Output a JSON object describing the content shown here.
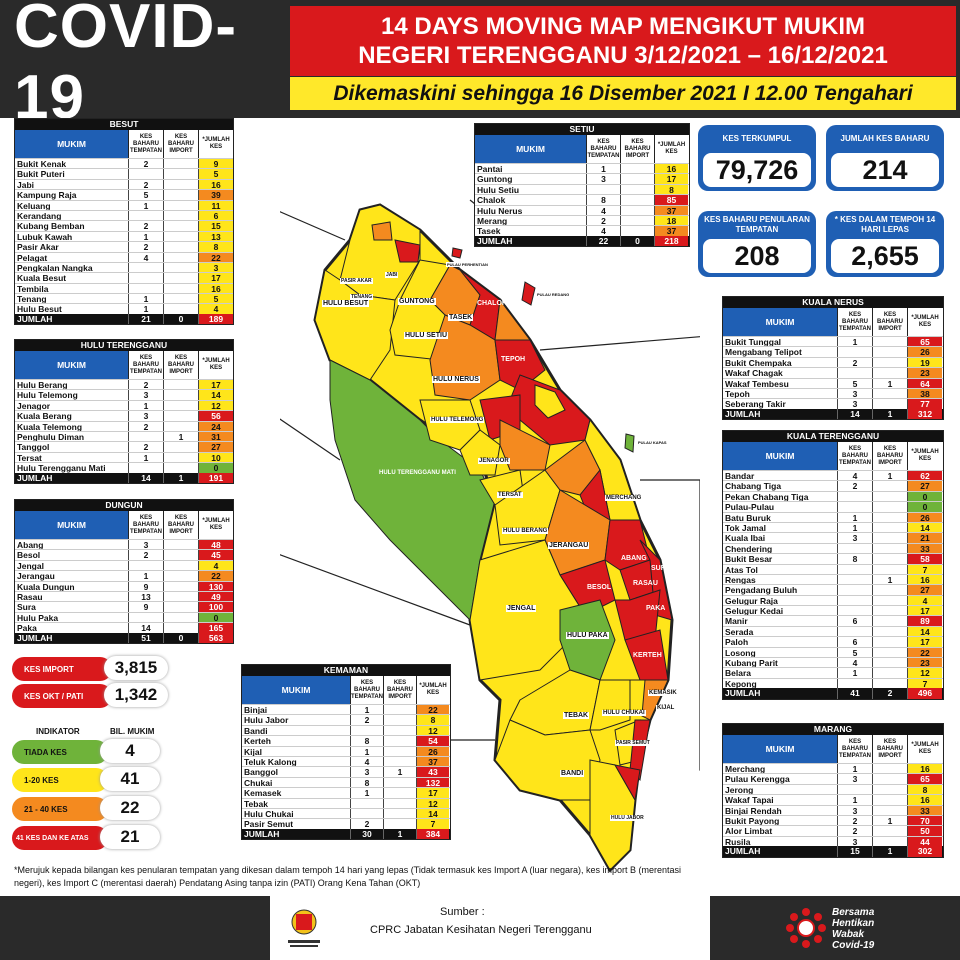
{
  "header": {
    "logo": "COVID-19",
    "title1": "14 DAYS MOVING MAP MENGIKUT MUKIM",
    "title2": "NEGERI TERENGGANU 3/12/2021 – 16/12/2021",
    "subtitle": "Dikemaskini sehingga 16 Disember 2021 I 12.00 Tengahari"
  },
  "columns": {
    "mukim": "MUKIM",
    "local": "KES BAHARU TEMPATAN",
    "import": "KES BAHARU IMPORT",
    "jumlah": "*JUMLAH KES"
  },
  "tables": [
    {
      "title": "BESUT",
      "rows": [
        [
          "Bukit Kenak",
          "2",
          "",
          "9"
        ],
        [
          "Bukit Puteri",
          "",
          "",
          "5"
        ],
        [
          "Jabi",
          "2",
          "",
          "16"
        ],
        [
          "Kampung Raja",
          "5",
          "",
          "39"
        ],
        [
          "Keluang",
          "1",
          "",
          "11"
        ],
        [
          "Kerandang",
          "",
          "",
          "6"
        ],
        [
          "Kubang Bemban",
          "2",
          "",
          "15"
        ],
        [
          "Lubuk Kawah",
          "1",
          "",
          "13"
        ],
        [
          "Pasir Akar",
          "2",
          "",
          "8"
        ],
        [
          "Pelagat",
          "4",
          "",
          "22"
        ],
        [
          "Pengkalan Nangka",
          "",
          "",
          "3"
        ],
        [
          "Kuala Besut",
          "",
          "",
          "17"
        ],
        [
          "Tembila",
          "",
          "",
          "16"
        ],
        [
          "Tenang",
          "1",
          "",
          "5"
        ],
        [
          "Hulu Besut",
          "1",
          "",
          "4"
        ]
      ],
      "total": [
        "JUMLAH",
        "21",
        "0",
        "189"
      ]
    },
    {
      "title": "HULU TERENGGANU",
      "rows": [
        [
          "Hulu Berang",
          "2",
          "",
          "17"
        ],
        [
          "Hulu Telemong",
          "3",
          "",
          "14"
        ],
        [
          "Jenagor",
          "1",
          "",
          "12"
        ],
        [
          "Kuala Berang",
          "3",
          "",
          "56"
        ],
        [
          "Kuala Telemong",
          "2",
          "",
          "24"
        ],
        [
          "Penghulu Diman",
          "",
          "1",
          "31"
        ],
        [
          "Tanggol",
          "2",
          "",
          "27"
        ],
        [
          "Tersat",
          "1",
          "",
          "10"
        ],
        [
          "Hulu Terengganu Mati",
          "",
          "",
          "0"
        ]
      ],
      "total": [
        "JUMLAH",
        "14",
        "1",
        "191"
      ]
    },
    {
      "title": "DUNGUN",
      "rows": [
        [
          "Abang",
          "3",
          "",
          "48"
        ],
        [
          "Besol",
          "2",
          "",
          "45"
        ],
        [
          "Jengal",
          "",
          "",
          "4"
        ],
        [
          "Jerangau",
          "1",
          "",
          "22"
        ],
        [
          "Kuala Dungun",
          "9",
          "",
          "130"
        ],
        [
          "Rasau",
          "13",
          "",
          "49"
        ],
        [
          "Sura",
          "9",
          "",
          "100"
        ],
        [
          "Hulu Paka",
          "",
          "",
          "0"
        ],
        [
          "Paka",
          "14",
          "",
          "165"
        ]
      ],
      "total": [
        "JUMLAH",
        "51",
        "0",
        "563"
      ]
    },
    {
      "title": "KEMAMAN",
      "rows": [
        [
          "Binjai",
          "1",
          "",
          "22"
        ],
        [
          "Hulu Jabor",
          "2",
          "",
          "8"
        ],
        [
          "Bandi",
          "",
          "",
          "12"
        ],
        [
          "Kerteh",
          "8",
          "",
          "54"
        ],
        [
          "Kijal",
          "1",
          "",
          "26"
        ],
        [
          "Teluk Kalong",
          "4",
          "",
          "37"
        ],
        [
          "Banggol",
          "3",
          "1",
          "43"
        ],
        [
          "Chukai",
          "8",
          "",
          "132"
        ],
        [
          "Kemasek",
          "1",
          "",
          "17"
        ],
        [
          "Tebak",
          "",
          "",
          "12"
        ],
        [
          "Hulu Chukai",
          "",
          "",
          "14"
        ],
        [
          "Pasir Semut",
          "2",
          "",
          "7"
        ]
      ],
      "total": [
        "JUMLAH",
        "30",
        "1",
        "384"
      ]
    },
    {
      "title": "SETIU",
      "rows": [
        [
          "Pantai",
          "1",
          "",
          "16"
        ],
        [
          "Guntong",
          "3",
          "",
          "17"
        ],
        [
          "Hulu Setiu",
          "",
          "",
          "8"
        ],
        [
          "Chalok",
          "8",
          "",
          "85"
        ],
        [
          "Hulu Nerus",
          "4",
          "",
          "37"
        ],
        [
          "Merang",
          "2",
          "",
          "18"
        ],
        [
          "Tasek",
          "4",
          "",
          "37"
        ]
      ],
      "total": [
        "JUMLAH",
        "22",
        "0",
        "218"
      ]
    },
    {
      "title": "KUALA NERUS",
      "rows": [
        [
          "Bukit Tunggal",
          "1",
          "",
          "65"
        ],
        [
          "Mengabang Telipot",
          "",
          "",
          "26"
        ],
        [
          "Bukit Chempaka",
          "2",
          "",
          "19"
        ],
        [
          "Wakaf Chagak",
          "",
          "",
          "23"
        ],
        [
          "Wakaf Tembesu",
          "5",
          "1",
          "64"
        ],
        [
          "Tepoh",
          "3",
          "",
          "38"
        ],
        [
          "Seberang Takir",
          "3",
          "",
          "77"
        ]
      ],
      "total": [
        "JUMLAH",
        "14",
        "1",
        "312"
      ]
    },
    {
      "title": "KUALA TERENGGANU",
      "rows": [
        [
          "Bandar",
          "4",
          "1",
          "62"
        ],
        [
          "Chabang Tiga",
          "2",
          "",
          "27"
        ],
        [
          "Pekan Chabang Tiga",
          "",
          "",
          "0"
        ],
        [
          "Pulau-Pulau",
          "",
          "",
          "0"
        ],
        [
          "Batu Buruk",
          "1",
          "",
          "26"
        ],
        [
          "Tok Jamal",
          "1",
          "",
          "14"
        ],
        [
          "Kuala Ibai",
          "3",
          "",
          "21"
        ],
        [
          "Chendering",
          "",
          "",
          "33"
        ],
        [
          "Bukit Besar",
          "8",
          "",
          "58"
        ],
        [
          "Atas Tol",
          "",
          "",
          "7"
        ],
        [
          "Rengas",
          "",
          "1",
          "16"
        ],
        [
          "Pengadang Buluh",
          "",
          "",
          "27"
        ],
        [
          "Gelugur Raja",
          "",
          "",
          "4"
        ],
        [
          "Gelugur Kedai",
          "",
          "",
          "17"
        ],
        [
          "Manir",
          "6",
          "",
          "89"
        ],
        [
          "Serada",
          "",
          "",
          "14"
        ],
        [
          "Paloh",
          "6",
          "",
          "17"
        ],
        [
          "Losong",
          "5",
          "",
          "22"
        ],
        [
          "Kubang Parit",
          "4",
          "",
          "23"
        ],
        [
          "Belara",
          "1",
          "",
          "12"
        ],
        [
          "Kepong",
          "",
          "",
          "7"
        ]
      ],
      "total": [
        "JUMLAH",
        "41",
        "2",
        "496"
      ]
    },
    {
      "title": "MARANG",
      "rows": [
        [
          "Merchang",
          "1",
          "",
          "16"
        ],
        [
          "Pulau Kerengga",
          "3",
          "",
          "65"
        ],
        [
          "Jerong",
          "",
          "",
          "8"
        ],
        [
          "Wakaf Tapai",
          "1",
          "",
          "16"
        ],
        [
          "Binjai Rendah",
          "3",
          "",
          "33"
        ],
        [
          "Bukit Payong",
          "2",
          "1",
          "70"
        ],
        [
          "Alor Limbat",
          "2",
          "",
          "50"
        ],
        [
          "Rusila",
          "3",
          "",
          "44"
        ]
      ],
      "total": [
        "JUMLAH",
        "15",
        "1",
        "302"
      ]
    }
  ],
  "cards": [
    {
      "title": "KES TERKUMPUL",
      "value": "79,726"
    },
    {
      "title": "JUMLAH KES BAHARU",
      "value": "214"
    },
    {
      "title": "KES BAHARU PENULARAN TEMPATAN",
      "value": "208"
    },
    {
      "title": "* KES DALAM TEMPOH 14 HARI LEPAS",
      "value": "2,655"
    }
  ],
  "totals": [
    {
      "label": "KES IMPORT",
      "value": "3,815"
    },
    {
      "label": "KES OKT / PATI",
      "value": "1,342"
    }
  ],
  "legend": {
    "indicator_header": "INDIKATOR",
    "count_header": "BIL. MUKIM",
    "items": [
      {
        "label": "TIADA KES",
        "value": "4",
        "color": "#6fb33a"
      },
      {
        "label": "1-20 KES",
        "value": "41",
        "color": "#ffe51a"
      },
      {
        "label": "21 - 40 KES",
        "value": "22",
        "color": "#f48a1f"
      },
      {
        "label": "41 KES DAN KE ATAS",
        "value": "21",
        "color": "#d9191c"
      }
    ]
  },
  "note": "*Merujuk kepada bilangan kes penularan tempatan yang dikesan dalam tempoh 14 hari yang lepas (Tidak termasuk kes Import A (luar negara), kes import B (merentasi negeri), kes Import C (merentasi daerah) Pendatang Asing tanpa izin (PATI) Orang Kena Tahan (OKT)",
  "source": {
    "label": "Sumber :",
    "value": "CPRC Jabatan Kesihatan Negeri Terengganu"
  },
  "campaign": "Bersama Hentikan Wabak Covid-19",
  "map_labels": [
    "HULU BESUT",
    "GUNTONG",
    "HULU SETIU",
    "TASEK",
    "CHALOK",
    "HULU NERUS",
    "TEPOH",
    "HULU TERENGGANU MATI",
    "HULU TELEMONG",
    "JENAGOR",
    "TERSAT",
    "HULU BERANG",
    "JERANGAU",
    "MERCHANG",
    "JENGAL",
    "BESOL",
    "ABANG",
    "RASAU",
    "SURA",
    "PAKA",
    "HULU PAKA",
    "KERTEH",
    "TEBAK",
    "BANDI",
    "HULU CHUKAI",
    "KEMASIK",
    "KIJAL",
    "PASIR SEMUT",
    "HULU JABOR",
    "PULAU REDANG",
    "PULAU KAPAS",
    "PULAU PERHENTIAN",
    "JABI",
    "TENANG",
    "PASIR AKAR"
  ]
}
